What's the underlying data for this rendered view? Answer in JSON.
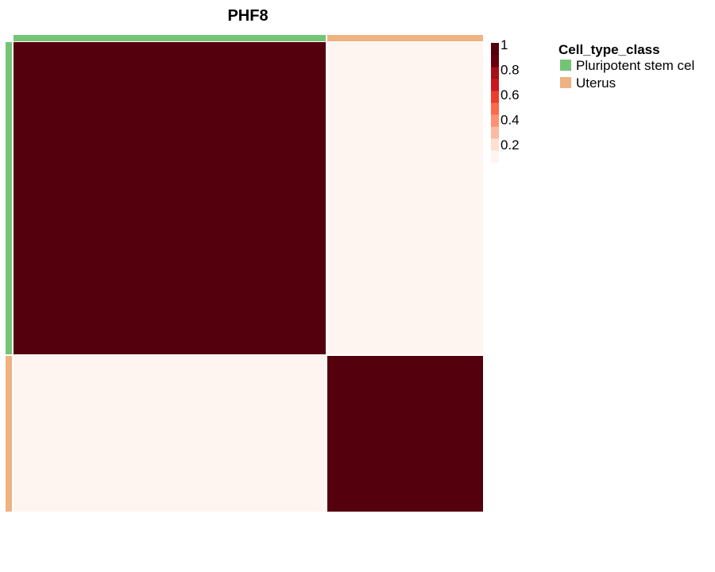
{
  "chart_data": {
    "type": "heatmap",
    "title": "PHF8",
    "groups": [
      {
        "name": "Pluripotent stem cel",
        "color": "#74c476",
        "size": 4
      },
      {
        "name": "Uterus",
        "color": "#efb281",
        "size": 2
      }
    ],
    "matrix": [
      [
        1,
        1,
        1,
        1,
        0,
        0
      ],
      [
        1,
        1,
        1,
        1,
        0,
        0
      ],
      [
        1,
        1,
        1,
        1,
        0,
        0
      ],
      [
        1,
        1,
        1,
        1,
        0,
        0
      ],
      [
        0,
        0,
        0,
        0,
        1,
        1
      ],
      [
        0,
        0,
        0,
        0,
        1,
        1
      ]
    ],
    "colorbar": {
      "ticks": [
        "1",
        "0.8",
        "0.6",
        "0.4",
        "0.2"
      ],
      "tick_values": [
        1,
        0.8,
        0.6,
        0.4,
        0.2
      ],
      "range": [
        0,
        1
      ],
      "colors": [
        "#fff5f0",
        "#fee0d2",
        "#fcbba1",
        "#fc9272",
        "#fb6a4a",
        "#ef3b2c",
        "#cb181d",
        "#a50f15",
        "#67000d",
        "#54000d"
      ]
    },
    "legend": {
      "title": "Cell_type_class",
      "placement": "right"
    }
  }
}
